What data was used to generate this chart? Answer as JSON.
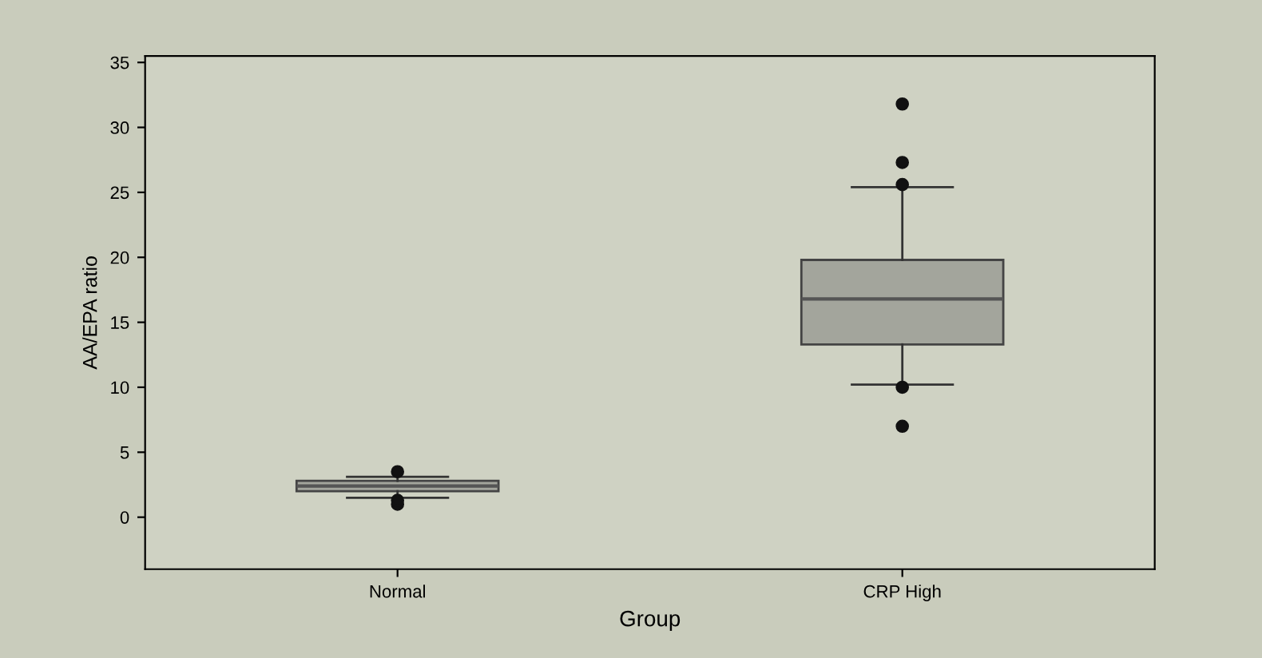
{
  "chart_data": {
    "type": "box",
    "xlabel": "Group",
    "ylabel": "AA/EPA ratio",
    "categories": [
      "Normal",
      "CRP High"
    ],
    "boxes": [
      {
        "low": 1.5,
        "q1": 2.0,
        "median": 2.4,
        "q3": 2.8,
        "high": 3.1,
        "outliers": [
          3.5,
          1.0,
          1.3
        ]
      },
      {
        "low": 10.2,
        "q1": 13.3,
        "median": 16.8,
        "q3": 19.8,
        "high": 25.4,
        "outliers": [
          31.8,
          27.3,
          25.6,
          10.0,
          7.0
        ]
      }
    ],
    "color": "#a3a59c",
    "ylim": [
      -4,
      35.5
    ],
    "yticks": [
      0,
      5,
      10,
      15,
      20,
      25,
      30,
      35
    ],
    "grid": false
  }
}
